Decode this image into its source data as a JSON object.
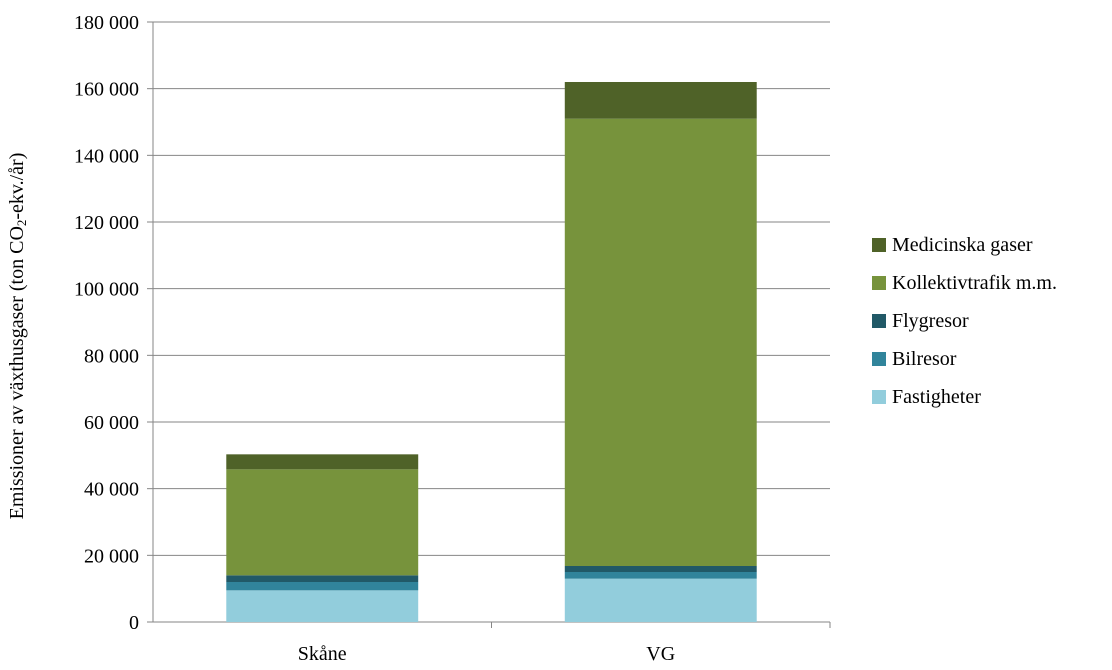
{
  "chart_data": {
    "type": "bar",
    "stacked": true,
    "categories": [
      "Skåne",
      "VG"
    ],
    "series": [
      {
        "name": "Fastigheter",
        "color": "#92CDDC",
        "values": [
          9500,
          13000
        ]
      },
      {
        "name": "Bilresor",
        "color": "#31849B",
        "values": [
          2500,
          2000
        ]
      },
      {
        "name": "Flygresor",
        "color": "#215967",
        "values": [
          2000,
          1800
        ]
      },
      {
        "name": "Kollektivtrafik m.m.",
        "color": "#77933C",
        "values": [
          31800,
          134200
        ]
      },
      {
        "name": "Medicinska gaser",
        "color": "#4F6228",
        "values": [
          4500,
          11000
        ]
      }
    ],
    "ylim": [
      0,
      180000
    ],
    "yticks": [
      0,
      20000,
      40000,
      60000,
      80000,
      100000,
      120000,
      140000,
      160000,
      180000
    ],
    "ytick_labels": [
      "0",
      "20 000",
      "40 000",
      "60 000",
      "80 000",
      "100 000",
      "120 000",
      "140 000",
      "160 000",
      "180 000"
    ],
    "ylabel_main": "Emissioner av växthusgaser (ton CO",
    "ylabel_sub": "2",
    "ylabel_tail": "-ekv./år)",
    "xlabel": "",
    "title": "",
    "grid": true,
    "legend_position": "right"
  }
}
